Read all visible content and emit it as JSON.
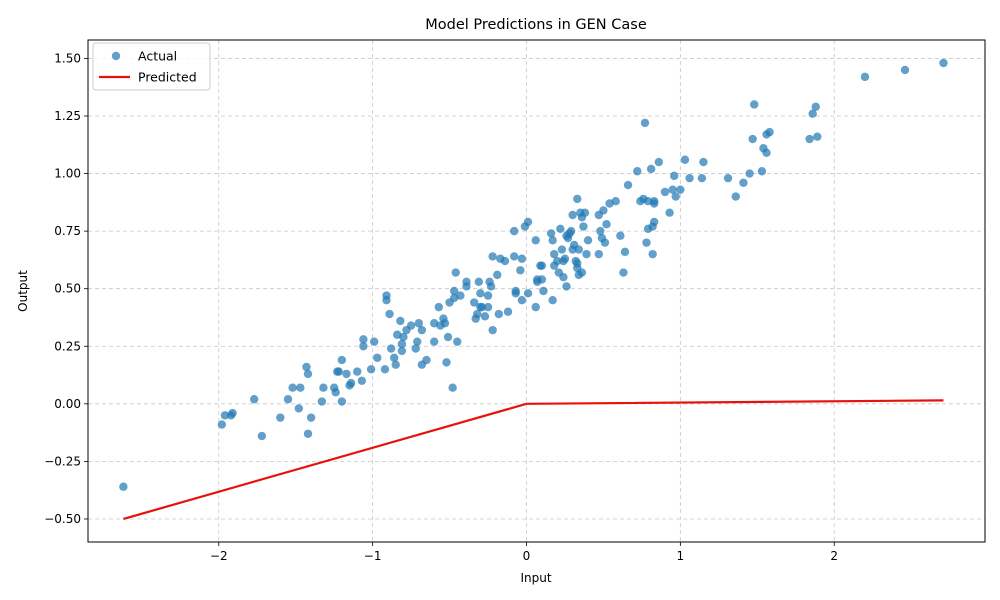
{
  "chart_data": {
    "type": "scatter",
    "title": "Model Predictions in GEN Case",
    "xlabel": "Input",
    "ylabel": "Output",
    "xlim": [
      -2.85,
      2.98
    ],
    "ylim": [
      -0.6,
      1.58
    ],
    "xticks": [
      -2,
      -1,
      0,
      1,
      2
    ],
    "xtick_labels": [
      "−2",
      "−1",
      "0",
      "1",
      "2"
    ],
    "yticks": [
      -0.5,
      -0.25,
      0.0,
      0.25,
      0.5,
      0.75,
      1.0,
      1.25,
      1.5
    ],
    "ytick_labels": [
      "−0.50",
      "−0.25",
      "0.00",
      "0.25",
      "0.50",
      "0.75",
      "1.00",
      "1.25",
      "1.50"
    ],
    "grid": true,
    "legend": {
      "position": "top-left",
      "entries": [
        "Actual",
        "Predicted"
      ]
    },
    "colors": {
      "actual": "#1f77b4",
      "predicted": "#e8120c",
      "grid": "#c8c8c8"
    },
    "series": [
      {
        "name": "Actual",
        "kind": "scatter",
        "points": [
          [
            -2.62,
            -0.36
          ],
          [
            -1.98,
            -0.09
          ],
          [
            -1.96,
            -0.05
          ],
          [
            -1.92,
            -0.05
          ],
          [
            -1.91,
            -0.04
          ],
          [
            -1.77,
            0.02
          ],
          [
            -1.72,
            -0.14
          ],
          [
            -1.6,
            -0.06
          ],
          [
            -1.55,
            0.02
          ],
          [
            -1.52,
            0.07
          ],
          [
            -1.48,
            -0.02
          ],
          [
            -1.47,
            0.07
          ],
          [
            -1.43,
            0.16
          ],
          [
            -1.42,
            0.13
          ],
          [
            -1.42,
            -0.13
          ],
          [
            -1.4,
            -0.06
          ],
          [
            -1.33,
            0.01
          ],
          [
            -1.32,
            0.07
          ],
          [
            -1.25,
            0.07
          ],
          [
            -1.24,
            0.05
          ],
          [
            -1.23,
            0.14
          ],
          [
            -1.22,
            0.14
          ],
          [
            -1.2,
            0.19
          ],
          [
            -1.2,
            0.01
          ],
          [
            -1.17,
            0.13
          ],
          [
            -1.15,
            0.08
          ],
          [
            -1.14,
            0.09
          ],
          [
            -1.1,
            0.14
          ],
          [
            -1.07,
            0.1
          ],
          [
            -1.06,
            0.25
          ],
          [
            -1.06,
            0.28
          ],
          [
            -1.01,
            0.15
          ],
          [
            -0.99,
            0.27
          ],
          [
            -0.97,
            0.2
          ],
          [
            -0.92,
            0.15
          ],
          [
            -0.91,
            0.47
          ],
          [
            -0.91,
            0.45
          ],
          [
            -0.89,
            0.39
          ],
          [
            -0.88,
            0.24
          ],
          [
            -0.86,
            0.2
          ],
          [
            -0.85,
            0.17
          ],
          [
            -0.84,
            0.3
          ],
          [
            -0.82,
            0.36
          ],
          [
            -0.81,
            0.23
          ],
          [
            -0.81,
            0.26
          ],
          [
            -0.8,
            0.29
          ],
          [
            -0.78,
            0.32
          ],
          [
            -0.75,
            0.34
          ],
          [
            -0.72,
            0.24
          ],
          [
            -0.71,
            0.27
          ],
          [
            -0.7,
            0.35
          ],
          [
            -0.68,
            0.32
          ],
          [
            -0.68,
            0.17
          ],
          [
            -0.65,
            0.19
          ],
          [
            -0.6,
            0.35
          ],
          [
            -0.6,
            0.27
          ],
          [
            -0.57,
            0.42
          ],
          [
            -0.56,
            0.34
          ],
          [
            -0.54,
            0.37
          ],
          [
            -0.53,
            0.35
          ],
          [
            -0.52,
            0.18
          ],
          [
            -0.51,
            0.29
          ],
          [
            -0.5,
            0.44
          ],
          [
            -0.48,
            0.07
          ],
          [
            -0.47,
            0.46
          ],
          [
            -0.47,
            0.49
          ],
          [
            -0.46,
            0.57
          ],
          [
            -0.45,
            0.27
          ],
          [
            -0.43,
            0.47
          ],
          [
            -0.39,
            0.51
          ],
          [
            -0.39,
            0.53
          ],
          [
            -0.34,
            0.44
          ],
          [
            -0.33,
            0.37
          ],
          [
            -0.32,
            0.39
          ],
          [
            -0.31,
            0.53
          ],
          [
            -0.3,
            0.42
          ],
          [
            -0.3,
            0.48
          ],
          [
            -0.29,
            0.42
          ],
          [
            -0.27,
            0.38
          ],
          [
            -0.25,
            0.47
          ],
          [
            -0.25,
            0.42
          ],
          [
            -0.24,
            0.53
          ],
          [
            -0.23,
            0.51
          ],
          [
            -0.22,
            0.64
          ],
          [
            -0.22,
            0.32
          ],
          [
            -0.19,
            0.56
          ],
          [
            -0.18,
            0.39
          ],
          [
            -0.17,
            0.63
          ],
          [
            -0.14,
            0.62
          ],
          [
            -0.12,
            0.4
          ],
          [
            -0.08,
            0.75
          ],
          [
            -0.08,
            0.64
          ],
          [
            -0.07,
            0.49
          ],
          [
            -0.07,
            0.48
          ],
          [
            -0.04,
            0.58
          ],
          [
            -0.03,
            0.63
          ],
          [
            -0.03,
            0.45
          ],
          [
            -0.01,
            0.77
          ],
          [
            0.01,
            0.79
          ],
          [
            0.01,
            0.48
          ],
          [
            0.06,
            0.71
          ],
          [
            0.06,
            0.42
          ],
          [
            0.07,
            0.54
          ],
          [
            0.07,
            0.53
          ],
          [
            0.09,
            0.6
          ],
          [
            0.1,
            0.54
          ],
          [
            0.1,
            0.6
          ],
          [
            0.11,
            0.49
          ],
          [
            0.16,
            0.74
          ],
          [
            0.17,
            0.71
          ],
          [
            0.17,
            0.45
          ],
          [
            0.18,
            0.6
          ],
          [
            0.18,
            0.65
          ],
          [
            0.2,
            0.62
          ],
          [
            0.21,
            0.57
          ],
          [
            0.22,
            0.76
          ],
          [
            0.23,
            0.67
          ],
          [
            0.24,
            0.55
          ],
          [
            0.24,
            0.62
          ],
          [
            0.25,
            0.63
          ],
          [
            0.26,
            0.73
          ],
          [
            0.26,
            0.51
          ],
          [
            0.27,
            0.72
          ],
          [
            0.28,
            0.74
          ],
          [
            0.29,
            0.75
          ],
          [
            0.3,
            0.82
          ],
          [
            0.3,
            0.67
          ],
          [
            0.31,
            0.69
          ],
          [
            0.32,
            0.62
          ],
          [
            0.33,
            0.89
          ],
          [
            0.33,
            0.61
          ],
          [
            0.33,
            0.59
          ],
          [
            0.34,
            0.67
          ],
          [
            0.34,
            0.56
          ],
          [
            0.35,
            0.83
          ],
          [
            0.36,
            0.81
          ],
          [
            0.36,
            0.57
          ],
          [
            0.37,
            0.77
          ],
          [
            0.38,
            0.83
          ],
          [
            0.39,
            0.65
          ],
          [
            0.4,
            0.71
          ],
          [
            0.47,
            0.82
          ],
          [
            0.47,
            0.65
          ],
          [
            0.48,
            0.75
          ],
          [
            0.49,
            0.72
          ],
          [
            0.5,
            0.84
          ],
          [
            0.51,
            0.7
          ],
          [
            0.52,
            0.78
          ],
          [
            0.54,
            0.87
          ],
          [
            0.58,
            0.88
          ],
          [
            0.61,
            0.73
          ],
          [
            0.63,
            0.57
          ],
          [
            0.64,
            0.66
          ],
          [
            0.66,
            0.95
          ],
          [
            0.72,
            1.01
          ],
          [
            0.74,
            0.88
          ],
          [
            0.76,
            0.89
          ],
          [
            0.77,
            1.22
          ],
          [
            0.78,
            0.7
          ],
          [
            0.79,
            0.88
          ],
          [
            0.79,
            0.76
          ],
          [
            0.81,
            1.02
          ],
          [
            0.82,
            0.77
          ],
          [
            0.82,
            0.65
          ],
          [
            0.83,
            0.79
          ],
          [
            0.83,
            0.88
          ],
          [
            0.83,
            0.87
          ],
          [
            0.86,
            1.05
          ],
          [
            0.9,
            0.92
          ],
          [
            0.93,
            0.83
          ],
          [
            0.95,
            0.93
          ],
          [
            0.96,
            0.99
          ],
          [
            0.97,
            0.9
          ],
          [
            1.0,
            0.93
          ],
          [
            1.03,
            1.06
          ],
          [
            1.06,
            0.98
          ],
          [
            1.14,
            0.98
          ],
          [
            1.15,
            1.05
          ],
          [
            1.31,
            0.98
          ],
          [
            1.36,
            0.9
          ],
          [
            1.41,
            0.96
          ],
          [
            1.45,
            1.0
          ],
          [
            1.47,
            1.15
          ],
          [
            1.48,
            1.3
          ],
          [
            1.53,
            1.01
          ],
          [
            1.54,
            1.11
          ],
          [
            1.56,
            1.09
          ],
          [
            1.56,
            1.17
          ],
          [
            1.58,
            1.18
          ],
          [
            1.84,
            1.15
          ],
          [
            1.86,
            1.26
          ],
          [
            1.88,
            1.29
          ],
          [
            1.89,
            1.16
          ],
          [
            2.2,
            1.42
          ],
          [
            2.46,
            1.45
          ],
          [
            2.71,
            1.48
          ]
        ]
      },
      {
        "name": "Predicted",
        "kind": "line",
        "points": [
          [
            -2.62,
            -0.5
          ],
          [
            0.0,
            0.0
          ],
          [
            2.71,
            0.015
          ]
        ]
      }
    ]
  }
}
